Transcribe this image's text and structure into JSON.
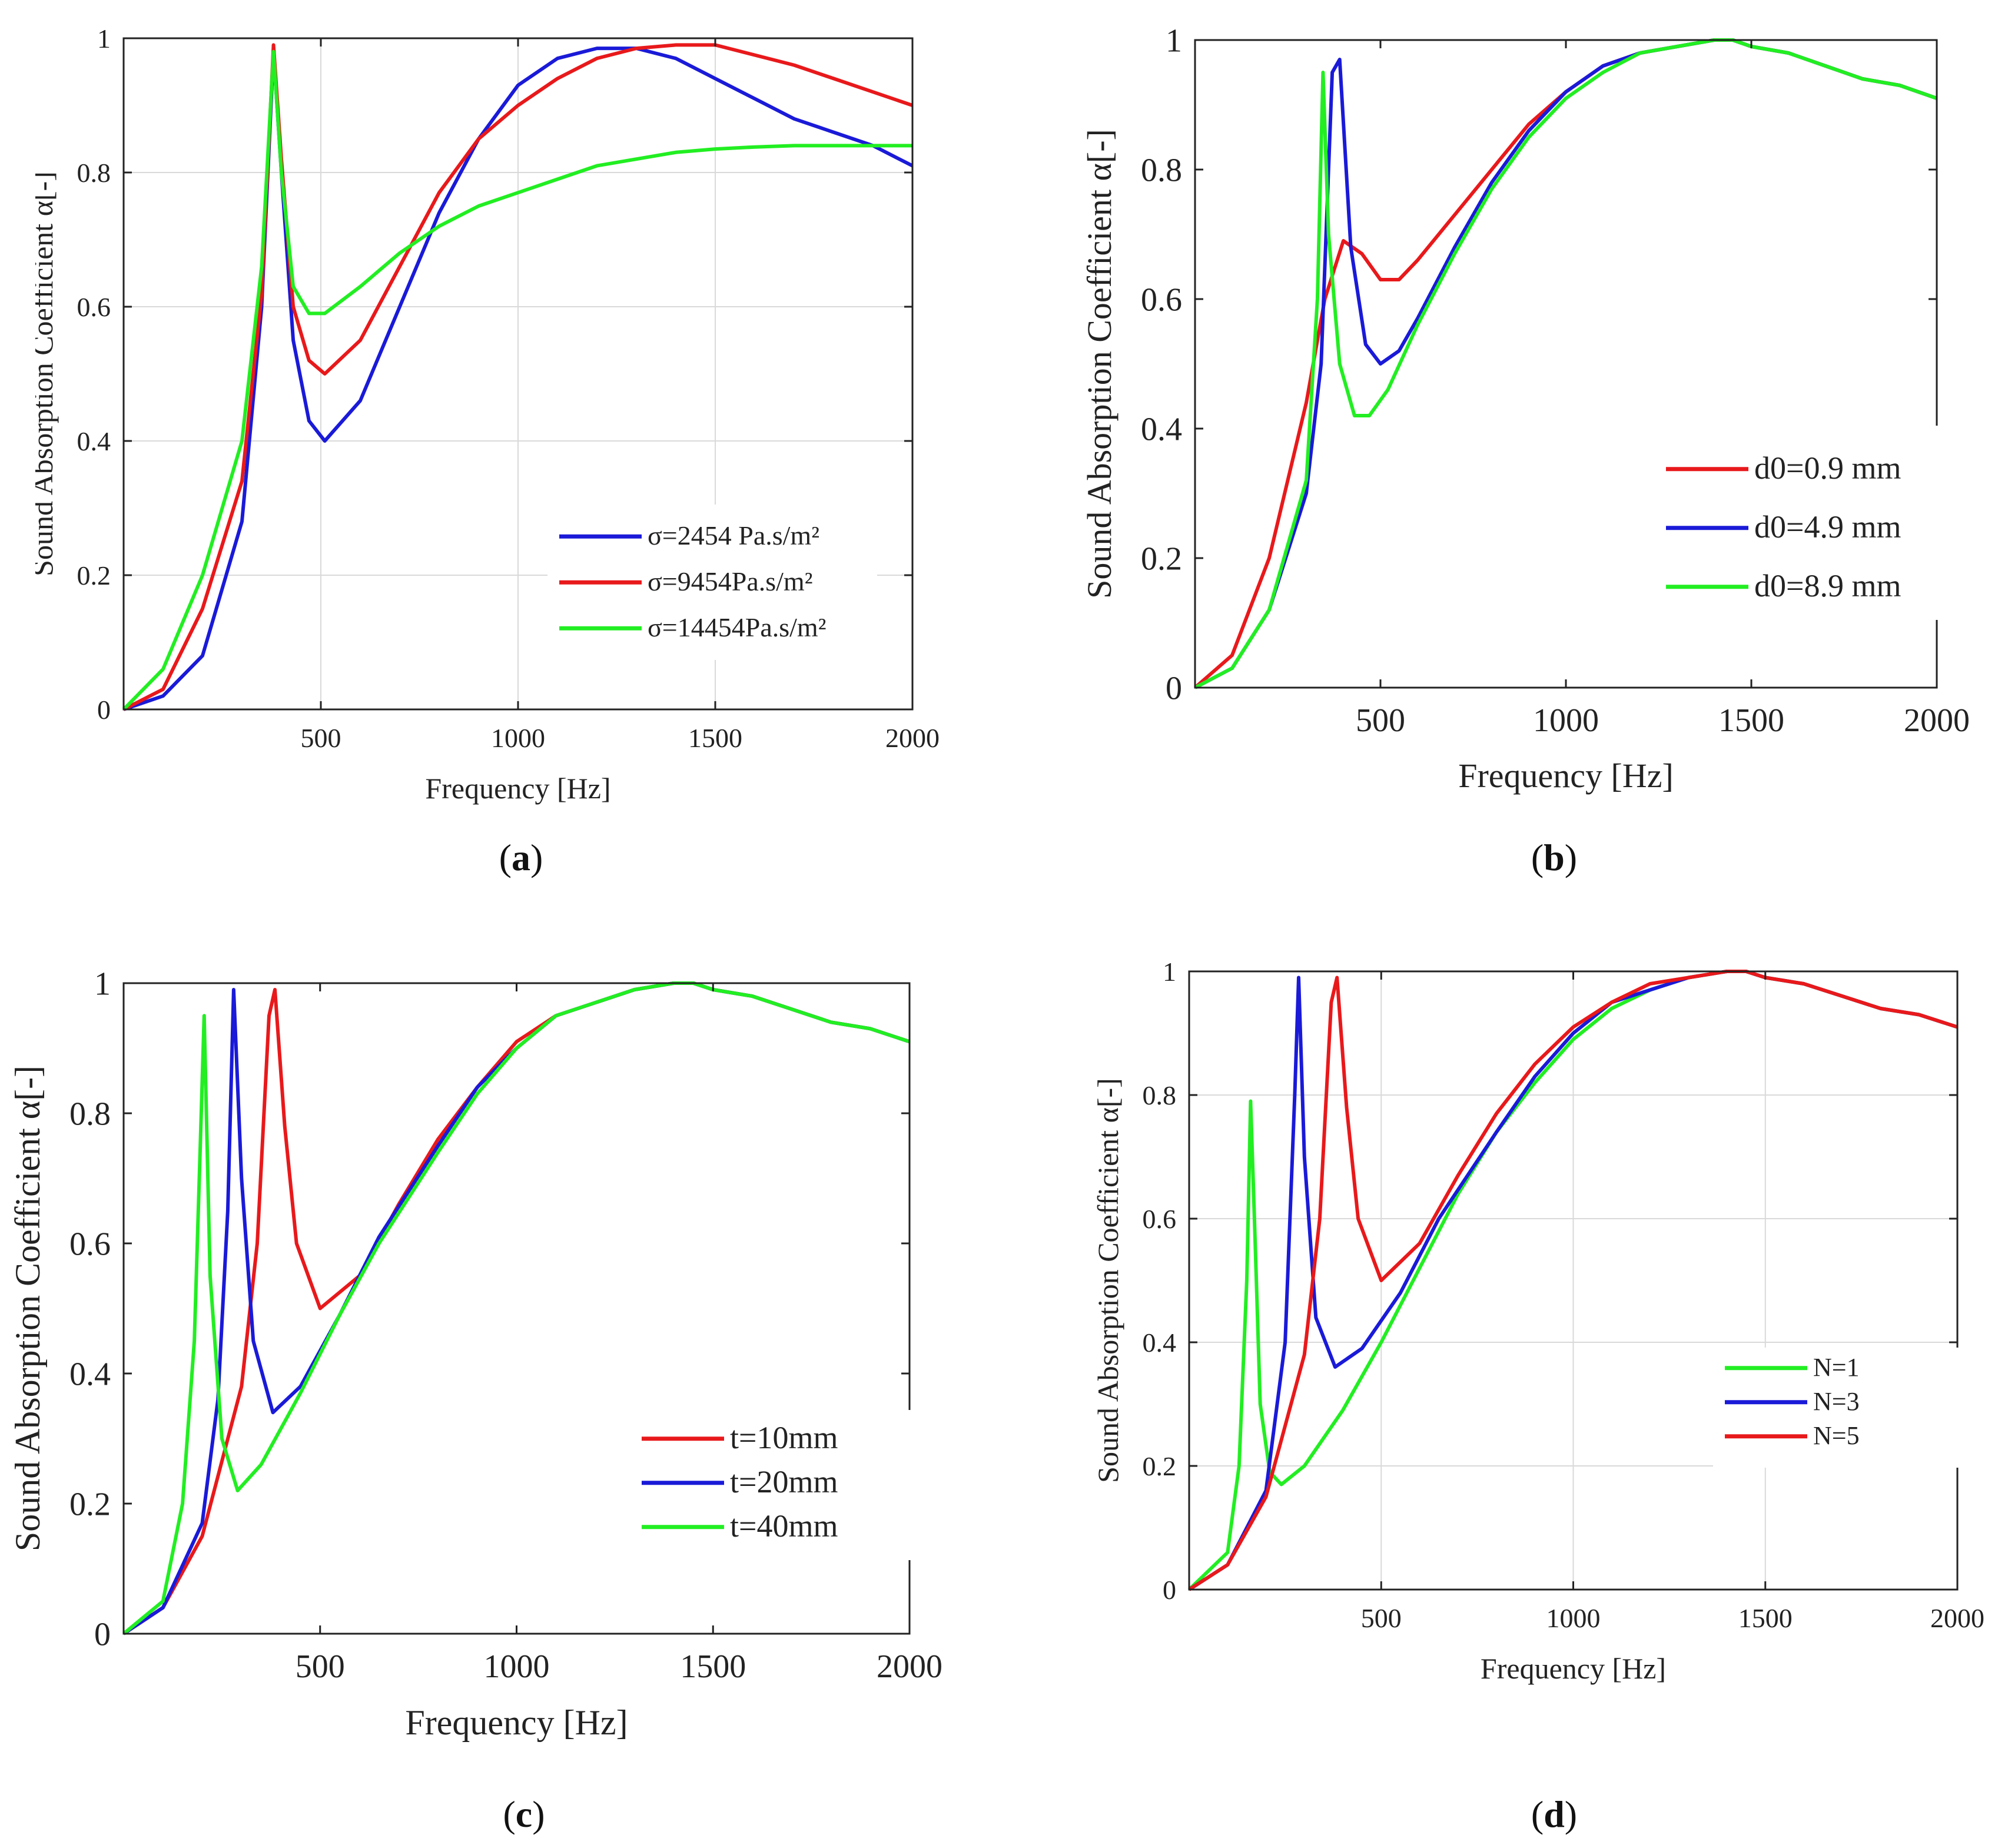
{
  "colors": {
    "red": "#e8191b",
    "blue": "#1a1ad8",
    "green": "#22ee22",
    "grid": "#d9d9d9",
    "axis": "#222222"
  },
  "chart_data": [
    {
      "type": "line",
      "caption": "a",
      "xlabel": "Frequency [Hz]",
      "ylabel": "Sound Absorption Coefficient α[-]",
      "xlim": [
        0,
        2000
      ],
      "ylim": [
        0,
        1
      ],
      "xticks": [
        500,
        1000,
        1500,
        2000
      ],
      "yticks": [
        0,
        0.2,
        0.4,
        0.6,
        0.8,
        1
      ],
      "grid": true,
      "legend_position": "middle-right",
      "series": [
        {
          "name": "σ=2454 Pa.s/m²",
          "color": "blue",
          "x": [
            0,
            100,
            200,
            300,
            350,
            380,
            400,
            430,
            470,
            510,
            600,
            700,
            800,
            900,
            1000,
            1100,
            1200,
            1300,
            1400,
            1500,
            1600,
            1700,
            1800,
            1900,
            2000
          ],
          "y": [
            0,
            0.02,
            0.08,
            0.28,
            0.6,
            0.98,
            0.8,
            0.55,
            0.43,
            0.4,
            0.46,
            0.6,
            0.74,
            0.85,
            0.93,
            0.97,
            0.985,
            0.985,
            0.97,
            0.94,
            0.91,
            0.88,
            0.86,
            0.84,
            0.81
          ]
        },
        {
          "name": "σ=9454Pa.s/m²",
          "color": "red",
          "x": [
            0,
            100,
            200,
            300,
            350,
            380,
            400,
            430,
            470,
            510,
            600,
            700,
            800,
            900,
            1000,
            1100,
            1200,
            1300,
            1400,
            1500,
            1600,
            1700,
            1800,
            1900,
            2000
          ],
          "y": [
            0,
            0.03,
            0.15,
            0.34,
            0.62,
            0.99,
            0.82,
            0.6,
            0.52,
            0.5,
            0.55,
            0.66,
            0.77,
            0.85,
            0.9,
            0.94,
            0.97,
            0.985,
            0.99,
            0.99,
            0.975,
            0.96,
            0.94,
            0.92,
            0.9
          ]
        },
        {
          "name": "σ=14454Pa.s/m²",
          "color": "green",
          "x": [
            0,
            100,
            200,
            300,
            350,
            380,
            400,
            430,
            470,
            510,
            600,
            700,
            800,
            900,
            1000,
            1100,
            1200,
            1300,
            1400,
            1500,
            1600,
            1700,
            1800,
            1900,
            2000
          ],
          "y": [
            0,
            0.06,
            0.2,
            0.4,
            0.66,
            0.98,
            0.8,
            0.63,
            0.59,
            0.59,
            0.63,
            0.68,
            0.72,
            0.75,
            0.77,
            0.79,
            0.81,
            0.82,
            0.83,
            0.835,
            0.838,
            0.84,
            0.84,
            0.84,
            0.84
          ]
        }
      ]
    },
    {
      "type": "line",
      "caption": "b",
      "xlabel": "Frequency [Hz]",
      "ylabel": "Sound Absorption Coefficient α[-]",
      "xlim": [
        0,
        2000
      ],
      "ylim": [
        0,
        1
      ],
      "xticks": [
        500,
        1000,
        1500,
        2000
      ],
      "yticks": [
        0,
        0.2,
        0.4,
        0.6,
        0.8,
        1
      ],
      "grid": false,
      "legend_position": "middle-right",
      "series": [
        {
          "name": "d0=0.9 mm",
          "color": "red",
          "x": [
            0,
            100,
            200,
            300,
            350,
            400,
            450,
            500,
            550,
            600,
            700,
            800,
            900,
            1000,
            1100,
            1200,
            1300,
            1400,
            1450,
            1500,
            1600,
            1700,
            1800,
            1900,
            2000
          ],
          "y": [
            0,
            0.05,
            0.2,
            0.44,
            0.6,
            0.69,
            0.67,
            0.63,
            0.63,
            0.66,
            0.73,
            0.8,
            0.87,
            0.92,
            0.96,
            0.98,
            0.99,
            1.0,
            1.0,
            0.99,
            0.98,
            0.96,
            0.94,
            0.93,
            0.91
          ]
        },
        {
          "name": "d0=4.9 mm",
          "color": "blue",
          "x": [
            0,
            100,
            200,
            300,
            340,
            370,
            390,
            420,
            460,
            500,
            550,
            600,
            700,
            800,
            900,
            1000,
            1100,
            1200,
            1300,
            1400,
            1450,
            1500,
            1600,
            1700,
            1800,
            1900,
            2000
          ],
          "y": [
            0,
            0.03,
            0.12,
            0.3,
            0.5,
            0.95,
            0.97,
            0.68,
            0.53,
            0.5,
            0.52,
            0.57,
            0.68,
            0.78,
            0.86,
            0.92,
            0.96,
            0.98,
            0.99,
            1.0,
            1.0,
            0.99,
            0.98,
            0.96,
            0.94,
            0.93,
            0.91
          ]
        },
        {
          "name": "d0=8.9 mm",
          "color": "green",
          "x": [
            0,
            100,
            200,
            300,
            330,
            345,
            360,
            390,
            430,
            470,
            520,
            600,
            700,
            800,
            900,
            1000,
            1100,
            1200,
            1300,
            1400,
            1450,
            1500,
            1600,
            1700,
            1800,
            1900,
            2000
          ],
          "y": [
            0,
            0.03,
            0.12,
            0.32,
            0.6,
            0.95,
            0.7,
            0.5,
            0.42,
            0.42,
            0.46,
            0.56,
            0.67,
            0.77,
            0.85,
            0.91,
            0.95,
            0.98,
            0.99,
            1.0,
            1.0,
            0.99,
            0.98,
            0.96,
            0.94,
            0.93,
            0.91
          ]
        }
      ]
    },
    {
      "type": "line",
      "caption": "c",
      "xlabel": "Frequency [Hz]",
      "ylabel": "Sound Absorption Coefficient α[-]",
      "xlim": [
        0,
        2000
      ],
      "ylim": [
        0,
        1
      ],
      "xticks": [
        500,
        1000,
        1500,
        2000
      ],
      "yticks": [
        0,
        0.2,
        0.4,
        0.6,
        0.8,
        1
      ],
      "grid": false,
      "legend_position": "lower-right",
      "series": [
        {
          "name": "t=10mm",
          "color": "red",
          "x": [
            0,
            100,
            200,
            300,
            340,
            370,
            385,
            410,
            440,
            500,
            600,
            700,
            800,
            900,
            1000,
            1100,
            1200,
            1300,
            1400,
            1450,
            1500,
            1600,
            1700,
            1800,
            1900,
            2000
          ],
          "y": [
            0,
            0.04,
            0.15,
            0.38,
            0.6,
            0.95,
            0.99,
            0.78,
            0.6,
            0.5,
            0.55,
            0.66,
            0.76,
            0.84,
            0.91,
            0.95,
            0.97,
            0.99,
            1.0,
            1.0,
            0.99,
            0.98,
            0.96,
            0.94,
            0.93,
            0.91
          ]
        },
        {
          "name": "t=20mm",
          "color": "blue",
          "x": [
            0,
            100,
            200,
            240,
            265,
            280,
            300,
            330,
            380,
            450,
            550,
            650,
            800,
            900,
            1000,
            1100,
            1200,
            1300,
            1400,
            1450,
            1500,
            1600,
            1700,
            1800,
            1900,
            2000
          ],
          "y": [
            0,
            0.04,
            0.17,
            0.36,
            0.65,
            0.99,
            0.7,
            0.45,
            0.34,
            0.38,
            0.49,
            0.61,
            0.75,
            0.84,
            0.9,
            0.95,
            0.97,
            0.99,
            1.0,
            1.0,
            0.99,
            0.98,
            0.96,
            0.94,
            0.93,
            0.91
          ]
        },
        {
          "name": "t=40mm",
          "color": "green",
          "x": [
            0,
            100,
            150,
            180,
            195,
            205,
            220,
            250,
            290,
            350,
            450,
            550,
            650,
            800,
            900,
            1000,
            1100,
            1200,
            1300,
            1400,
            1450,
            1500,
            1600,
            1700,
            1800,
            1900,
            2000
          ],
          "y": [
            0,
            0.05,
            0.2,
            0.45,
            0.75,
            0.95,
            0.55,
            0.3,
            0.22,
            0.26,
            0.37,
            0.49,
            0.6,
            0.74,
            0.83,
            0.9,
            0.95,
            0.97,
            0.99,
            1.0,
            1.0,
            0.99,
            0.98,
            0.96,
            0.94,
            0.93,
            0.91
          ]
        }
      ]
    },
    {
      "type": "line",
      "caption": "d",
      "xlabel": "Frequency [Hz]",
      "ylabel": "Sound Absorption Coefficient α[-]",
      "xlim": [
        0,
        2000
      ],
      "ylim": [
        0,
        1
      ],
      "xticks": [
        500,
        1000,
        1500,
        2000
      ],
      "yticks": [
        0,
        0.2,
        0.4,
        0.6,
        0.8,
        1
      ],
      "grid": true,
      "legend_position": "middle-right",
      "series": [
        {
          "name": "N=1",
          "color": "green",
          "x": [
            0,
            100,
            130,
            150,
            160,
            170,
            185,
            210,
            240,
            300,
            400,
            500,
            600,
            700,
            800,
            900,
            1000,
            1100,
            1200,
            1300,
            1400,
            1450,
            1500,
            1600,
            1700,
            1800,
            1900,
            2000
          ],
          "y": [
            0,
            0.06,
            0.2,
            0.5,
            0.79,
            0.6,
            0.3,
            0.19,
            0.17,
            0.2,
            0.29,
            0.4,
            0.52,
            0.64,
            0.74,
            0.82,
            0.89,
            0.94,
            0.97,
            0.99,
            1.0,
            1.0,
            0.99,
            0.98,
            0.96,
            0.94,
            0.93,
            0.91
          ]
        },
        {
          "name": "N=3",
          "color": "blue",
          "x": [
            0,
            100,
            200,
            250,
            275,
            285,
            300,
            330,
            380,
            450,
            550,
            650,
            800,
            900,
            1000,
            1100,
            1200,
            1300,
            1400,
            1450,
            1500,
            1600,
            1700,
            1800,
            1900,
            2000
          ],
          "y": [
            0,
            0.04,
            0.16,
            0.4,
            0.8,
            0.99,
            0.7,
            0.44,
            0.36,
            0.39,
            0.48,
            0.6,
            0.74,
            0.83,
            0.9,
            0.95,
            0.97,
            0.99,
            1.0,
            1.0,
            0.99,
            0.98,
            0.96,
            0.94,
            0.93,
            0.91
          ]
        },
        {
          "name": "N=5",
          "color": "red",
          "x": [
            0,
            100,
            200,
            300,
            340,
            370,
            385,
            410,
            440,
            500,
            600,
            700,
            800,
            900,
            1000,
            1100,
            1200,
            1300,
            1400,
            1450,
            1500,
            1600,
            1700,
            1800,
            1900,
            2000
          ],
          "y": [
            0,
            0.04,
            0.15,
            0.38,
            0.6,
            0.95,
            0.99,
            0.78,
            0.6,
            0.5,
            0.56,
            0.67,
            0.77,
            0.85,
            0.91,
            0.95,
            0.98,
            0.99,
            1.0,
            1.0,
            0.99,
            0.98,
            0.96,
            0.94,
            0.93,
            0.91
          ]
        }
      ]
    }
  ]
}
